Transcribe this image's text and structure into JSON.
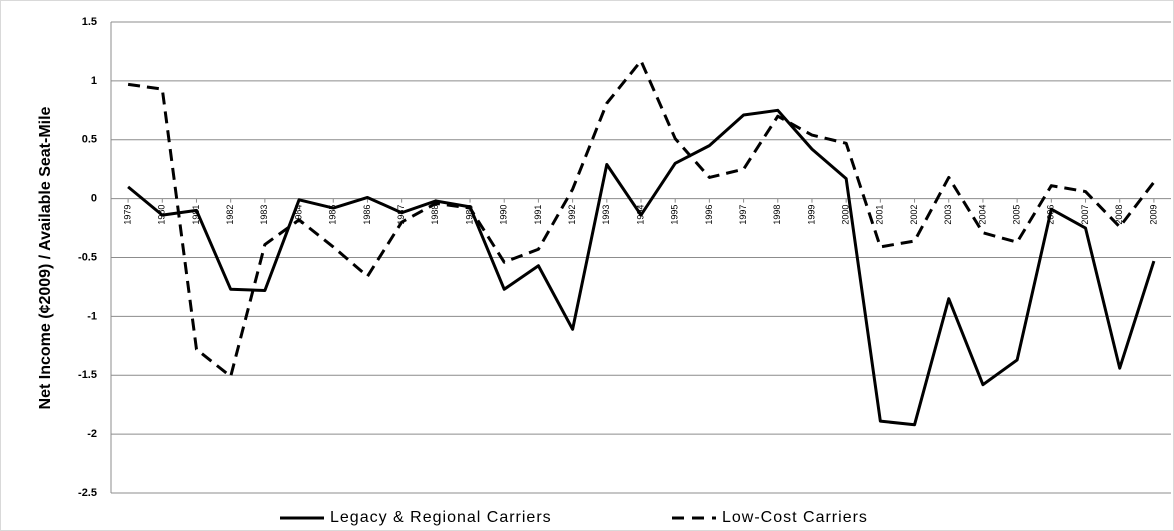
{
  "chart_data": {
    "type": "line",
    "y_label": "Net Income (¢2009) / Available Seat-Mile",
    "categories": [
      "1979",
      "1980",
      "1981",
      "1982",
      "1983",
      "1984",
      "1985",
      "1986",
      "1987",
      "1988",
      "1989",
      "1990",
      "1991",
      "1992",
      "1993",
      "1994",
      "1995",
      "1996",
      "1997",
      "1998",
      "1999",
      "2000",
      "2001",
      "2002",
      "2003",
      "2004",
      "2005",
      "2006",
      "2007",
      "2008",
      "2009"
    ],
    "series": [
      {
        "name": "Legacy & Regional Carriers",
        "color": "#000000",
        "line_style": "solid",
        "values": [
          0.1,
          -0.14,
          -0.1,
          -0.77,
          -0.78,
          -0.01,
          -0.08,
          0.01,
          -0.12,
          -0.02,
          -0.07,
          -0.77,
          -0.57,
          -1.11,
          0.29,
          -0.14,
          0.3,
          0.45,
          0.71,
          0.75,
          0.42,
          0.17,
          -1.89,
          -1.92,
          -0.85,
          -1.58,
          -1.37,
          -0.09,
          -0.25,
          -1.44,
          -0.53
        ]
      },
      {
        "name": "Low-Cost Carriers",
        "color": "#000000",
        "line_style": "dashed",
        "values": [
          0.97,
          0.93,
          -1.28,
          -1.51,
          -0.39,
          -0.18,
          -0.41,
          -0.66,
          -0.2,
          -0.04,
          -0.08,
          -0.54,
          -0.43,
          0.08,
          0.81,
          1.17,
          0.51,
          0.18,
          0.25,
          0.7,
          0.54,
          0.47,
          -0.41,
          -0.36,
          0.18,
          -0.29,
          -0.37,
          0.11,
          0.06,
          -0.24,
          0.14
        ]
      }
    ],
    "ylim": [
      -2.5,
      1.5
    ],
    "yticks": [
      -2.5,
      -2,
      -1.5,
      -1,
      -0.5,
      0,
      0.5,
      1,
      1.5
    ],
    "grid": true,
    "legend": "bottom"
  }
}
